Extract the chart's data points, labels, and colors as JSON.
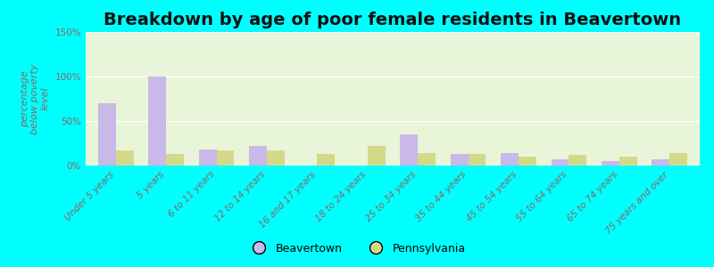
{
  "title": "Breakdown by age of poor female residents in Beavertown",
  "ylabel": "percentage\nbelow poverty\nlevel",
  "categories": [
    "Under 5 years",
    "5 years",
    "6 to 11 years",
    "12 to 14 years",
    "16 and 17 years",
    "18 to 24 years",
    "25 to 34 years",
    "35 to 44 years",
    "45 to 54 years",
    "55 to 64 years",
    "65 to 74 years",
    "75 years and over"
  ],
  "beavertown": [
    70,
    100,
    18,
    22,
    0,
    0,
    35,
    13,
    14,
    7,
    5,
    7
  ],
  "pennsylvania": [
    17,
    13,
    17,
    17,
    13,
    22,
    14,
    13,
    10,
    12,
    10,
    14
  ],
  "beavertown_color": "#c9b8e8",
  "pennsylvania_color": "#d4d98a",
  "outer_bg": "#00ffff",
  "plot_bg": "#e8f5d8",
  "ylim": [
    0,
    150
  ],
  "yticks": [
    0,
    50,
    100,
    150
  ],
  "ytick_labels": [
    "0%",
    "50%",
    "100%",
    "150%"
  ],
  "bar_width": 0.35,
  "title_fontsize": 14,
  "axis_label_fontsize": 8,
  "tick_fontsize": 7.5,
  "legend_labels": [
    "Beavertown",
    "Pennsylvania"
  ],
  "tick_color": "#886666",
  "ylabel_color": "#886666"
}
